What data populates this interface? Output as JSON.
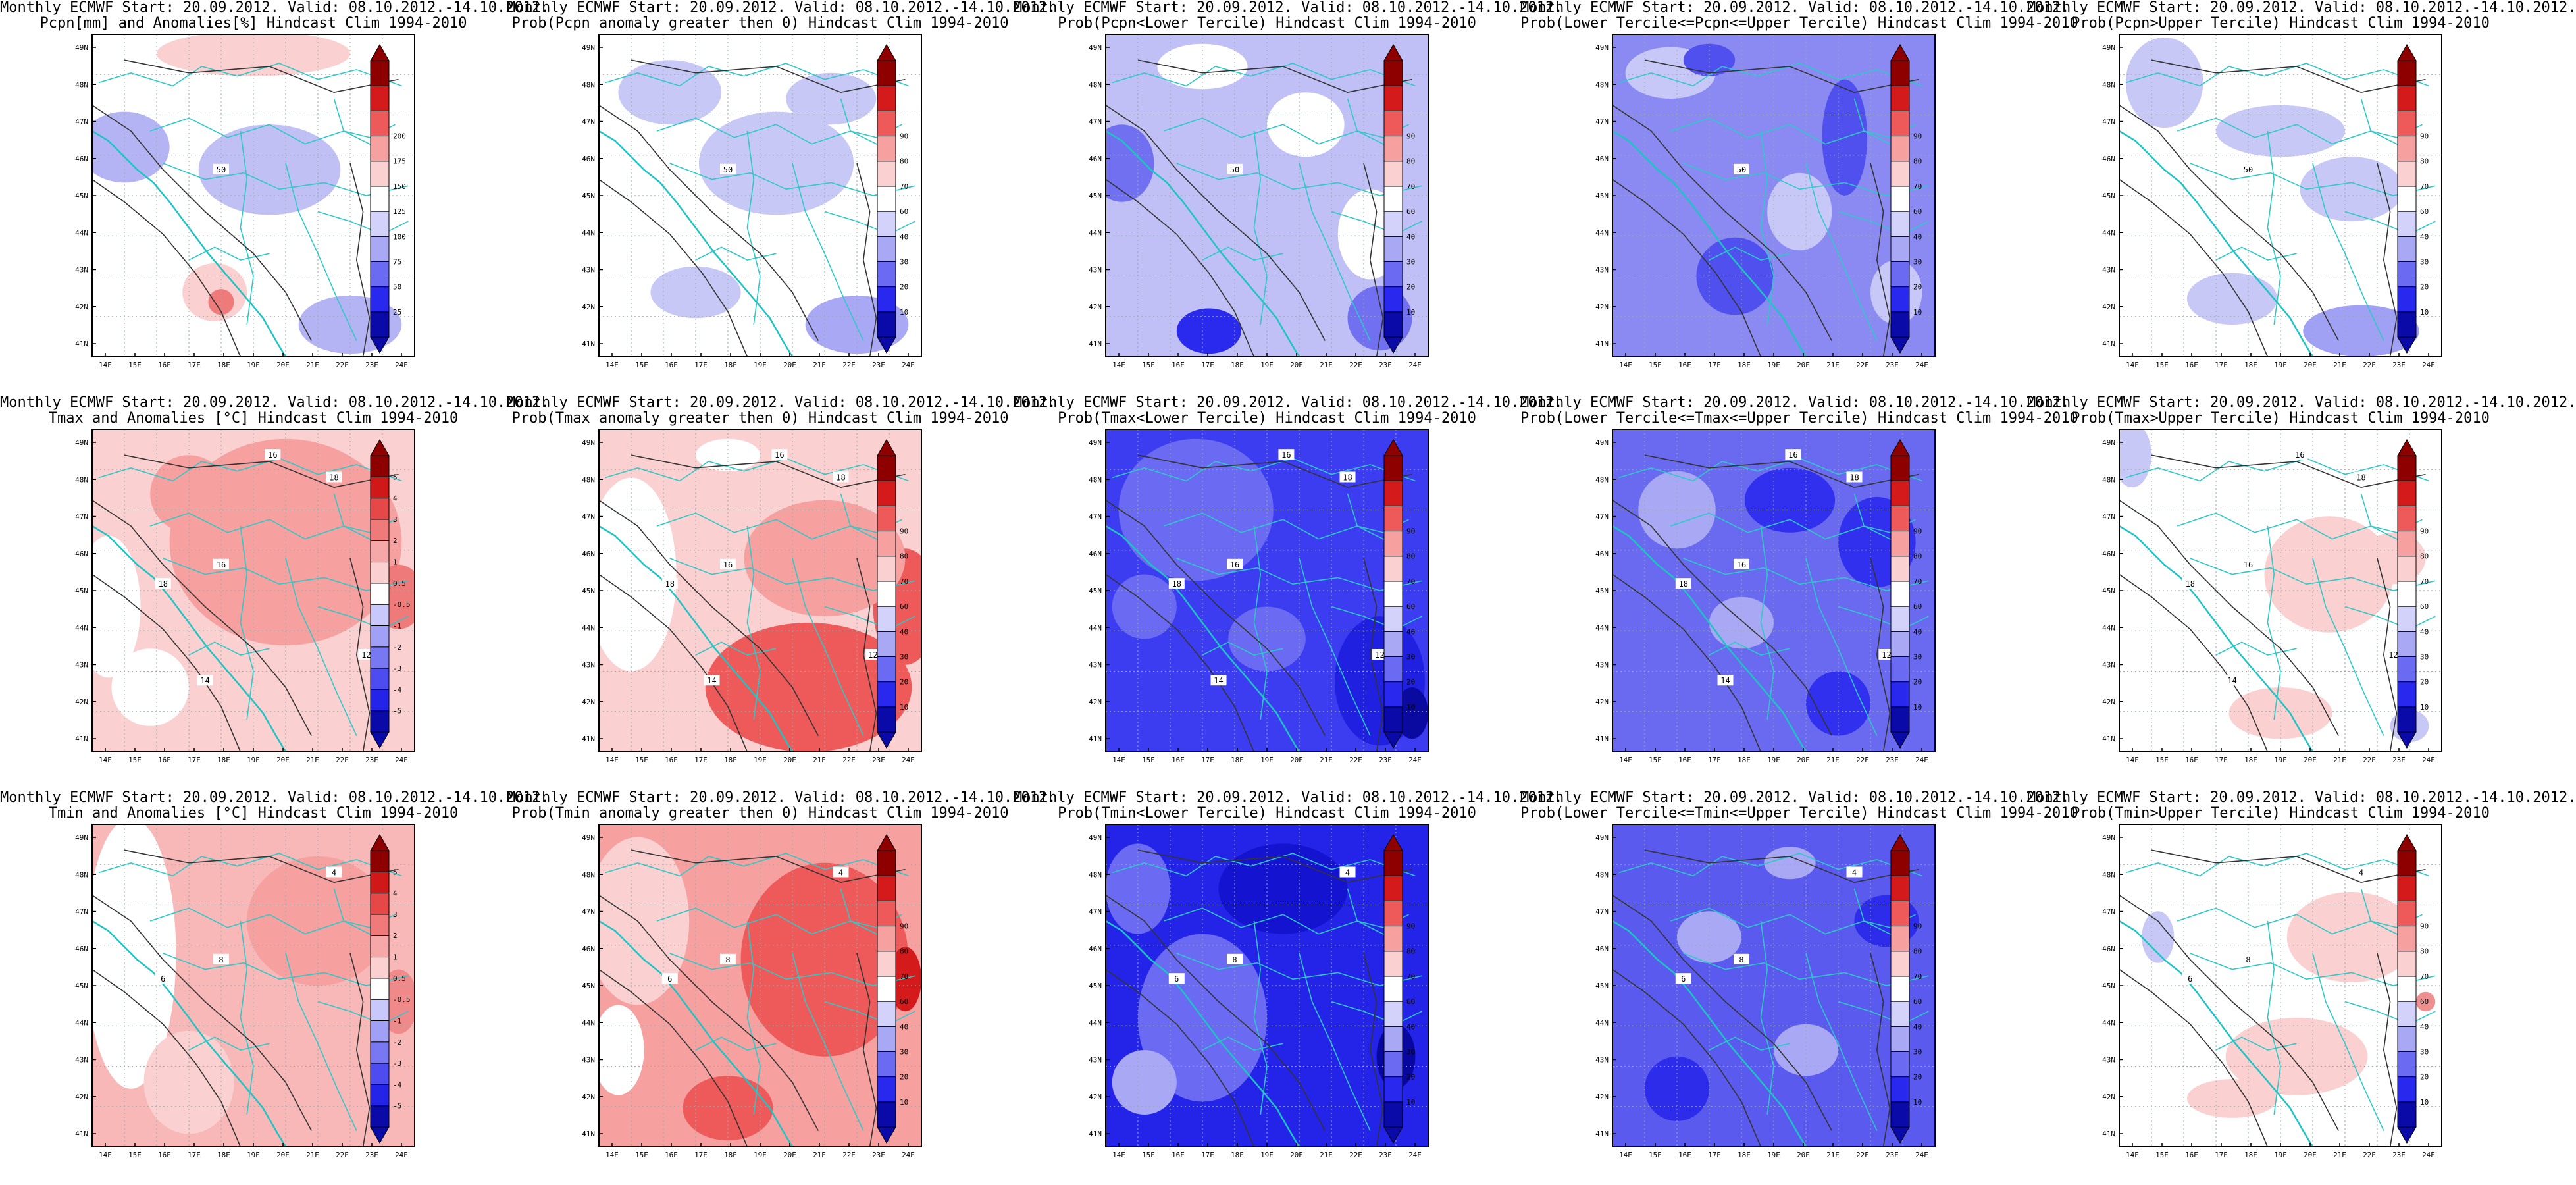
{
  "figure": {
    "lat_ticks": [
      "41N",
      "42N",
      "43N",
      "44N",
      "45N",
      "46N",
      "47N",
      "48N",
      "49N"
    ],
    "lon_ticks": [
      "14E",
      "15E",
      "16E",
      "17E",
      "18E",
      "19E",
      "20E",
      "21E",
      "22E",
      "23E",
      "24E"
    ],
    "panels": [
      {
        "title_line1": "Monthly ECMWF Start: 20.09.2012. Valid: 08.10.2012.-14.10.2012.",
        "title_line2": "Pcpn[mm] and Anomalies[%] Hindcast Clim 1994-2010",
        "colorbar": [
          "25",
          "50",
          "75",
          "100",
          "125",
          "150",
          "175",
          "200"
        ],
        "contour_labels": [
          "50"
        ]
      },
      {
        "title_line1": "Monthly ECMWF Start: 20.09.2012. Valid: 08.10.2012.-14.10.2012.",
        "title_line2": "Prob(Pcpn anomaly greater then 0) Hindcast Clim 1994-2010",
        "colorbar": [
          "10",
          "20",
          "30",
          "40",
          "60",
          "70",
          "80",
          "90"
        ],
        "contour_labels": [
          "50"
        ]
      },
      {
        "title_line1": "Monthly ECMWF Start: 20.09.2012. Valid: 08.10.2012.-14.10.2012.",
        "title_line2": "Prob(Pcpn<Lower Tercile) Hindcast Clim 1994-2010",
        "colorbar": [
          "10",
          "20",
          "30",
          "40",
          "60",
          "70",
          "80",
          "90"
        ],
        "contour_labels": [
          "50"
        ]
      },
      {
        "title_line1": "Monthly ECMWF Start: 20.09.2012. Valid: 08.10.2012.-14.10.2012.",
        "title_line2": "Prob(Lower Tercile<=Pcpn<=Upper Tercile) Hindcast Clim 1994-2010",
        "colorbar": [
          "10",
          "20",
          "30",
          "40",
          "60",
          "70",
          "80",
          "90"
        ],
        "contour_labels": [
          "50"
        ]
      },
      {
        "title_line1": "Monthly ECMWF Start: 20.09.2012. Valid: 08.10.2012.-14.10.2012.",
        "title_line2": "Prob(Pcpn>Upper Tercile) Hindcast Clim 1994-2010",
        "colorbar": [
          "10",
          "20",
          "30",
          "40",
          "60",
          "70",
          "80",
          "90"
        ],
        "contour_labels": [
          "50"
        ]
      },
      {
        "title_line1": "Monthly ECMWF Start: 20.09.2012. Valid: 08.10.2012.-14.10.2012.",
        "title_line2": "Tmax and Anomalies [°C] Hindcast Clim 1994-2010",
        "colorbar": [
          "-5",
          "-4",
          "-3",
          "-2",
          "-1",
          "-0.5",
          "0.5",
          "1",
          "2",
          "3",
          "4",
          "5"
        ],
        "contour_labels": [
          "16",
          "18",
          "18",
          "16",
          "12",
          "14"
        ]
      },
      {
        "title_line1": "Monthly ECMWF Start: 20.09.2012. Valid: 08.10.2012.-14.10.2012.",
        "title_line2": "Prob(Tmax anomaly greater then 0) Hindcast Clim 1994-2010",
        "colorbar": [
          "10",
          "20",
          "30",
          "40",
          "60",
          "70",
          "80",
          "90"
        ],
        "contour_labels": [
          "16",
          "18",
          "18",
          "16",
          "12",
          "14"
        ]
      },
      {
        "title_line1": "Monthly ECMWF Start: 20.09.2012. Valid: 08.10.2012.-14.10.2012.",
        "title_line2": "Prob(Tmax<Lower Tercile) Hindcast Clim 1994-2010",
        "colorbar": [
          "10",
          "20",
          "30",
          "40",
          "60",
          "70",
          "80",
          "90"
        ],
        "contour_labels": [
          "16",
          "18",
          "18",
          "16",
          "12",
          "14"
        ]
      },
      {
        "title_line1": "Monthly ECMWF Start: 20.09.2012. Valid: 08.10.2012.-14.10.2012.",
        "title_line2": "Prob(Lower Tercile<=Tmax<=Upper Tercile) Hindcast Clim 1994-2010",
        "colorbar": [
          "10",
          "20",
          "30",
          "40",
          "60",
          "70",
          "80",
          "90"
        ],
        "contour_labels": [
          "16",
          "18",
          "18",
          "16",
          "12",
          "14"
        ]
      },
      {
        "title_line1": "Monthly ECMWF Start: 20.09.2012. Valid: 08.10.2012.-14.10.2012.",
        "title_line2": "Prob(Tmax>Upper Tercile) Hindcast Clim 1994-2010",
        "colorbar": [
          "10",
          "20",
          "30",
          "40",
          "60",
          "70",
          "80",
          "90"
        ],
        "contour_labels": [
          "16",
          "18",
          "18",
          "16",
          "12",
          "14"
        ]
      },
      {
        "title_line1": "Monthly ECMWF Start: 20.09.2012. Valid: 08.10.2012.-14.10.2012.",
        "title_line2": "Tmin and Anomalies [°C] Hindcast Clim 1994-2010",
        "colorbar": [
          "-5",
          "-4",
          "-3",
          "-2",
          "-1",
          "-0.5",
          "0.5",
          "1",
          "2",
          "3",
          "4",
          "5"
        ],
        "contour_labels": [
          "8",
          "6",
          "4"
        ]
      },
      {
        "title_line1": "Monthly ECMWF Start: 20.09.2012. Valid: 08.10.2012.-14.10.2012.",
        "title_line2": "Prob(Tmin anomaly greater then 0) Hindcast Clim 1994-2010",
        "colorbar": [
          "10",
          "20",
          "30",
          "40",
          "60",
          "70",
          "80",
          "90"
        ],
        "contour_labels": [
          "8",
          "6",
          "4"
        ]
      },
      {
        "title_line1": "Monthly ECMWF Start: 20.09.2012. Valid: 08.10.2012.-14.10.2012.",
        "title_line2": "Prob(Tmin<Lower Tercile) Hindcast Clim 1994-2010",
        "colorbar": [
          "10",
          "20",
          "30",
          "40",
          "60",
          "70",
          "80",
          "90"
        ],
        "contour_labels": [
          "8",
          "6",
          "4"
        ]
      },
      {
        "title_line1": "Monthly ECMWF Start: 20.09.2012. Valid: 08.10.2012.-14.10.2012.",
        "title_line2": "Prob(Lower Tercile<=Tmin<=Upper Tercile) Hindcast Clim 1994-2010",
        "colorbar": [
          "10",
          "20",
          "30",
          "40",
          "60",
          "70",
          "80",
          "90"
        ],
        "contour_labels": [
          "8",
          "6",
          "4"
        ]
      },
      {
        "title_line1": "Monthly ECMWF Start: 20.09.2012. Valid: 08.10.2012.-14.10.2012.",
        "title_line2": "Prob(Tmin>Upper Tercile) Hindcast Clim 1994-2010",
        "colorbar": [
          "10",
          "20",
          "30",
          "40",
          "60",
          "70",
          "80",
          "90"
        ],
        "contour_labels": [
          "8",
          "6",
          "4"
        ]
      }
    ]
  }
}
